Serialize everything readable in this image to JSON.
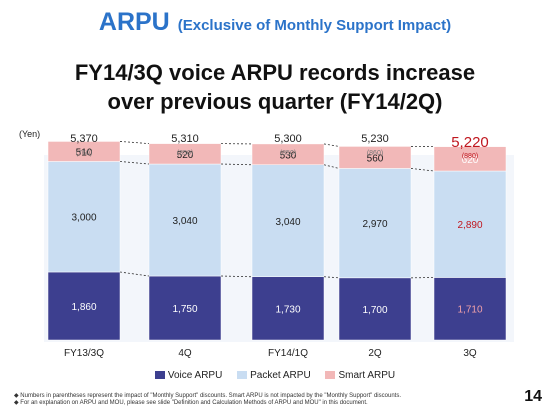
{
  "header": {
    "title": "ARPU",
    "subtitle": "(Exclusive of Monthly Support Impact)",
    "headline_line1": "FY14/3Q voice ARPU records increase",
    "headline_line2": "over previous quarter (FY14/2Q)",
    "unit_label": "(Yen)"
  },
  "colors": {
    "voice": "#3d3f8f",
    "packet": "#c9ddf2",
    "smart": "#f2b8b8",
    "highlight": "#c0171f",
    "title": "#2b73c9"
  },
  "chart_data": {
    "type": "bar",
    "stacked": true,
    "categories": [
      "FY13/3Q",
      "4Q",
      "FY14/1Q",
      "2Q",
      "3Q"
    ],
    "series": [
      {
        "name": "Voice ARPU",
        "values": [
          1860,
          1750,
          1730,
          1700,
          1710
        ],
        "labels": [
          "1,860",
          "1,750",
          "1,730",
          "1,700",
          "1,710"
        ]
      },
      {
        "name": "Packet ARPU",
        "values": [
          3000,
          3040,
          3040,
          2970,
          2890
        ],
        "labels": [
          "3,000",
          "3,040",
          "3,040",
          "2,970",
          "2,890"
        ]
      },
      {
        "name": "Smart ARPU",
        "values": [
          510,
          520,
          530,
          560,
          620
        ],
        "labels": [
          "510",
          "520",
          "530",
          "560",
          "620"
        ]
      }
    ],
    "totals": [
      "5,370",
      "5,310",
      "5,300",
      "5,230",
      "5,220"
    ],
    "support_impact": [
      "(760)",
      "(850)",
      "(850)",
      "(860)",
      "(880)"
    ],
    "highlight_index": 4,
    "legend_position": "bottom",
    "grid": false
  },
  "footnotes": {
    "line1": "Numbers in parentheses represent the impact of \"Monthly Support\" discounts. Smart ARPU is not impacted by the \"Monthly Support\" discounts.",
    "line2": "For an explanation on ARPU and MOU, please see slide \"Definition and Calculation Methods of ARPU and MOU\" in this document."
  },
  "page_number": "14"
}
